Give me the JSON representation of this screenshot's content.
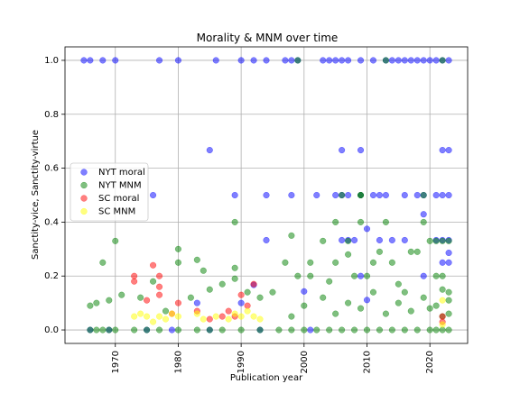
{
  "chart_data": {
    "type": "scatter",
    "title": "Morality & MNM over time",
    "xlabel": "Publication year",
    "ylabel": "Sanctity-vice, Sanctity-virtue",
    "xlim": [
      1962,
      2026
    ],
    "ylim": [
      -0.05,
      1.05
    ],
    "xticks": [
      1970,
      1980,
      1990,
      2000,
      2010,
      2020
    ],
    "yticks": [
      0.0,
      0.2,
      0.4,
      0.6,
      0.8,
      1.0
    ],
    "ytick_labels": [
      "0.0",
      "0.2",
      "0.4",
      "0.6",
      "0.8",
      "1.0"
    ],
    "grid": true,
    "legend_position": "center-left",
    "series": [
      {
        "name": "NYT moral",
        "color": "#0000ff",
        "points": [
          [
            1965,
            1.0
          ],
          [
            1966,
            1.0
          ],
          [
            1968,
            1.0
          ],
          [
            1970,
            1.0
          ],
          [
            1977,
            1.0
          ],
          [
            1980,
            1.0
          ],
          [
            1986,
            1.0
          ],
          [
            1990,
            1.0
          ],
          [
            1992,
            1.0
          ],
          [
            1994,
            1.0
          ],
          [
            1997,
            1.0
          ],
          [
            1998,
            1.0
          ],
          [
            1999,
            1.0
          ],
          [
            2003,
            1.0
          ],
          [
            2004,
            1.0
          ],
          [
            2005,
            1.0
          ],
          [
            2006,
            1.0
          ],
          [
            2007,
            1.0
          ],
          [
            2009,
            1.0
          ],
          [
            2011,
            1.0
          ],
          [
            2013,
            1.0
          ],
          [
            2014,
            1.0
          ],
          [
            2015,
            1.0
          ],
          [
            2016,
            1.0
          ],
          [
            2017,
            1.0
          ],
          [
            2018,
            1.0
          ],
          [
            2019,
            1.0
          ],
          [
            2020,
            1.0
          ],
          [
            2021,
            1.0
          ],
          [
            2022,
            1.0
          ],
          [
            2023,
            1.0
          ],
          [
            1985,
            0.667
          ],
          [
            2006,
            0.667
          ],
          [
            2009,
            0.667
          ],
          [
            2022,
            0.667
          ],
          [
            2023,
            0.667
          ],
          [
            1976,
            0.5
          ],
          [
            1989,
            0.5
          ],
          [
            1994,
            0.5
          ],
          [
            1998,
            0.5
          ],
          [
            2002,
            0.5
          ],
          [
            2005,
            0.5
          ],
          [
            2006,
            0.5
          ],
          [
            2007,
            0.5
          ],
          [
            2009,
            0.5
          ],
          [
            2011,
            0.5
          ],
          [
            2012,
            0.5
          ],
          [
            2013,
            0.5
          ],
          [
            2016,
            0.5
          ],
          [
            2018,
            0.5
          ],
          [
            2019,
            0.5
          ],
          [
            2021,
            0.5
          ],
          [
            2022,
            0.5
          ],
          [
            2023,
            0.5
          ],
          [
            2019,
            0.429
          ],
          [
            2010,
            0.375
          ],
          [
            1994,
            0.333
          ],
          [
            2006,
            0.333
          ],
          [
            2007,
            0.333
          ],
          [
            2008,
            0.333
          ],
          [
            2012,
            0.333
          ],
          [
            2014,
            0.333
          ],
          [
            2016,
            0.333
          ],
          [
            2021,
            0.333
          ],
          [
            2022,
            0.333
          ],
          [
            2023,
            0.333
          ],
          [
            2023,
            0.286
          ],
          [
            2022,
            0.25
          ],
          [
            2023,
            0.25
          ],
          [
            2019,
            0.2
          ],
          [
            2009,
            0.2
          ],
          [
            1992,
            0.167
          ],
          [
            2000,
            0.143
          ],
          [
            2010,
            0.111
          ],
          [
            1983,
            0.1
          ],
          [
            1990,
            0.1
          ],
          [
            1966,
            0.0
          ],
          [
            1969,
            0.0
          ],
          [
            1975,
            0.0
          ],
          [
            1979,
            0.0
          ],
          [
            1985,
            0.0
          ],
          [
            1993,
            0.0
          ],
          [
            2001,
            0.0
          ]
        ]
      },
      {
        "name": "NYT MNM",
        "color": "#008000",
        "points": [
          [
            1966,
            0.0
          ],
          [
            1967,
            0.0
          ],
          [
            1968,
            0.0
          ],
          [
            1969,
            0.0
          ],
          [
            1970,
            0.0
          ],
          [
            1973,
            0.0
          ],
          [
            1975,
            0.0
          ],
          [
            1977,
            0.0
          ],
          [
            1980,
            0.0
          ],
          [
            1983,
            0.0
          ],
          [
            1985,
            0.0
          ],
          [
            1987,
            0.0
          ],
          [
            1990,
            0.0
          ],
          [
            1993,
            0.0
          ],
          [
            1996,
            0.0
          ],
          [
            1998,
            0.0
          ],
          [
            2000,
            0.0
          ],
          [
            2002,
            0.0
          ],
          [
            2004,
            0.0
          ],
          [
            2006,
            0.0
          ],
          [
            2008,
            0.0
          ],
          [
            2010,
            0.0
          ],
          [
            2012,
            0.0
          ],
          [
            2014,
            0.0
          ],
          [
            2016,
            0.0
          ],
          [
            2018,
            0.0
          ],
          [
            2020,
            0.0
          ],
          [
            2021,
            0.0
          ],
          [
            2022,
            0.0
          ],
          [
            2023,
            0.0
          ],
          [
            1966,
            0.09
          ],
          [
            1967,
            0.1
          ],
          [
            1968,
            0.25
          ],
          [
            1969,
            0.11
          ],
          [
            1970,
            0.33
          ],
          [
            1971,
            0.13
          ],
          [
            1974,
            0.12
          ],
          [
            1976,
            0.18
          ],
          [
            1978,
            0.07
          ],
          [
            1980,
            0.3
          ],
          [
            1980,
            0.25
          ],
          [
            1982,
            0.12
          ],
          [
            1983,
            0.26
          ],
          [
            1984,
            0.22
          ],
          [
            1985,
            0.15
          ],
          [
            1987,
            0.17
          ],
          [
            1989,
            0.4
          ],
          [
            1989,
            0.23
          ],
          [
            1989,
            0.19
          ],
          [
            1991,
            0.14
          ],
          [
            1993,
            0.12
          ],
          [
            1995,
            0.14
          ],
          [
            1997,
            0.25
          ],
          [
            1998,
            0.35
          ],
          [
            1999,
            0.2
          ],
          [
            2001,
            0.25
          ],
          [
            2001,
            0.2
          ],
          [
            2003,
            0.33
          ],
          [
            2004,
            0.18
          ],
          [
            2005,
            0.4
          ],
          [
            2005,
            0.25
          ],
          [
            2006,
            0.5
          ],
          [
            2007,
            0.33
          ],
          [
            2007,
            0.28
          ],
          [
            2008,
            0.2
          ],
          [
            2009,
            0.5
          ],
          [
            2009,
            0.4
          ],
          [
            2010,
            0.2
          ],
          [
            2011,
            0.25
          ],
          [
            2012,
            0.29
          ],
          [
            2013,
            1.0
          ],
          [
            2013,
            0.4
          ],
          [
            2014,
            0.25
          ],
          [
            2015,
            0.17
          ],
          [
            2016,
            0.14
          ],
          [
            2017,
            0.29
          ],
          [
            2018,
            0.29
          ],
          [
            2019,
            0.5
          ],
          [
            2019,
            0.4
          ],
          [
            2020,
            0.33
          ],
          [
            2021,
            0.33
          ],
          [
            2021,
            0.2
          ],
          [
            2022,
            1.0
          ],
          [
            2022,
            0.33
          ],
          [
            2022,
            0.2
          ],
          [
            2023,
            0.33
          ],
          [
            2023,
            0.14
          ],
          [
            1999,
            1.0
          ],
          [
            2009,
            0.5
          ],
          [
            1998,
            0.05
          ],
          [
            2000,
            0.09
          ],
          [
            2003,
            0.12
          ],
          [
            2005,
            0.06
          ],
          [
            2007,
            0.1
          ],
          [
            2009,
            0.08
          ],
          [
            2011,
            0.14
          ],
          [
            2013,
            0.06
          ],
          [
            2015,
            0.1
          ],
          [
            2017,
            0.07
          ],
          [
            2019,
            0.12
          ],
          [
            2021,
            0.09
          ],
          [
            2022,
            0.15
          ],
          [
            2023,
            0.11
          ],
          [
            2022,
            0.05
          ],
          [
            2023,
            0.06
          ],
          [
            2020,
            0.08
          ]
        ]
      },
      {
        "name": "SC moral",
        "color": "#ff0000",
        "points": [
          [
            1973,
            0.2
          ],
          [
            1973,
            0.18
          ],
          [
            1975,
            0.11
          ],
          [
            1976,
            0.24
          ],
          [
            1977,
            0.2
          ],
          [
            1977,
            0.13
          ],
          [
            1977,
            0.16
          ],
          [
            1980,
            0.1
          ],
          [
            1983,
            0.07
          ],
          [
            1987,
            0.05
          ],
          [
            1988,
            0.07
          ],
          [
            1990,
            0.13
          ],
          [
            1991,
            0.09
          ],
          [
            1992,
            0.17
          ],
          [
            1979,
            0.06
          ],
          [
            1985,
            0.04
          ],
          [
            1989,
            0.05
          ],
          [
            2022,
            0.05
          ],
          [
            2022,
            0.03
          ]
        ]
      },
      {
        "name": "SC MNM",
        "color": "#ffff00",
        "points": [
          [
            1973,
            0.05
          ],
          [
            1974,
            0.06
          ],
          [
            1975,
            0.05
          ],
          [
            1976,
            0.03
          ],
          [
            1977,
            0.05
          ],
          [
            1978,
            0.04
          ],
          [
            1979,
            0.06
          ],
          [
            1980,
            0.05
          ],
          [
            1983,
            0.06
          ],
          [
            1984,
            0.04
          ],
          [
            1986,
            0.05
          ],
          [
            1988,
            0.04
          ],
          [
            1989,
            0.06
          ],
          [
            1990,
            0.05
          ],
          [
            1991,
            0.07
          ],
          [
            1992,
            0.05
          ],
          [
            1993,
            0.04
          ],
          [
            2022,
            0.11
          ],
          [
            2022,
            0.02
          ]
        ]
      }
    ]
  }
}
